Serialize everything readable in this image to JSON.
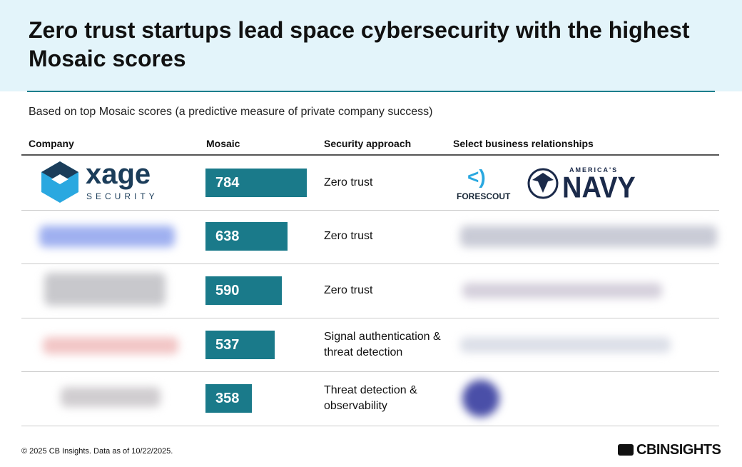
{
  "header": {
    "title": "Zero trust startups lead space cybersecurity with the highest Mosaic scores"
  },
  "subtitle": "Based on top Mosaic scores (a predictive measure of private company success)",
  "table": {
    "columns": [
      "Company",
      "Mosaic",
      "Security approach",
      "Select business relationships"
    ],
    "rows": [
      {
        "company": {
          "name": "xage",
          "tagline": "SECURITY"
        },
        "mosaic": 784,
        "approach": "Zero trust",
        "relationships": {
          "forescout": "FORESCOUT",
          "navy_tag": "AMERICA'S",
          "navy": "NAVY"
        }
      },
      {
        "mosaic": 638,
        "approach": "Zero trust"
      },
      {
        "mosaic": 590,
        "approach": "Zero trust"
      },
      {
        "mosaic": 537,
        "approach": "Signal authentication & threat detection"
      },
      {
        "mosaic": 358,
        "approach": "Threat detection & observability"
      }
    ]
  },
  "footer": {
    "note": "© 2025 CB Insights. Data as of 10/22/2025.",
    "brand": "CBINSIGHTS"
  }
}
